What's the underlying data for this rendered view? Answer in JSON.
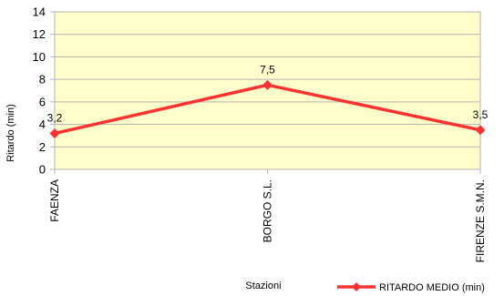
{
  "chart_data": {
    "type": "line",
    "title": "",
    "xlabel": "Stazioni",
    "ylabel": "Ritardo (min)",
    "categories": [
      "FAENZA",
      "BORGO S.L.",
      "FIRENZE S.M.N."
    ],
    "series": [
      {
        "name": "RITARDO MEDIO (min)",
        "values": [
          3.2,
          7.5,
          3.5
        ],
        "color": "#ff3333"
      }
    ],
    "data_labels": [
      "3,2",
      "7,5",
      "3,5"
    ],
    "ylim": [
      0,
      14
    ],
    "yticks": [
      0,
      2,
      4,
      6,
      8,
      10,
      12,
      14
    ],
    "ytick_labels": [
      "0",
      "2",
      "4",
      "6",
      "8",
      "10",
      "12",
      "14"
    ],
    "grid": true,
    "legend": "bottom-right",
    "plot_background": "#ffffcc",
    "grid_color": "#b3b3b3"
  }
}
